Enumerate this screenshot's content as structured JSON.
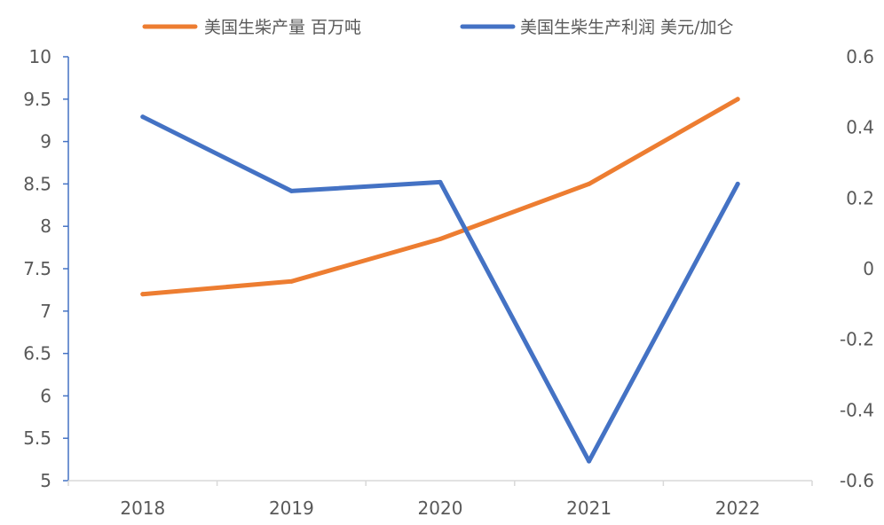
{
  "chart_data": {
    "type": "line",
    "categories": [
      "2018",
      "2019",
      "2020",
      "2021",
      "2022"
    ],
    "series": [
      {
        "name": "美国生柴产量 百万吨",
        "axis": "left",
        "color": "#ED7D31",
        "values": [
          7.2,
          7.35,
          7.85,
          8.5,
          9.5
        ]
      },
      {
        "name": "美国生柴生产利润 美元/加仑",
        "axis": "right",
        "color": "#4472C4",
        "values": [
          0.43,
          0.22,
          0.245,
          -0.545,
          0.24
        ]
      }
    ],
    "left_axis": {
      "min": 5,
      "max": 10,
      "ticks": [
        5,
        5.5,
        6,
        6.5,
        7,
        7.5,
        8,
        8.5,
        9,
        9.5,
        10
      ],
      "tick_labels": [
        "5",
        "5.5",
        "6",
        "6.5",
        "7",
        "7.5",
        "8",
        "8.5",
        "9",
        "9.5",
        "10"
      ]
    },
    "right_axis": {
      "min": -0.6,
      "max": 0.6,
      "ticks": [
        -0.6,
        -0.4,
        -0.2,
        0,
        0.2,
        0.4,
        0.6
      ],
      "tick_labels": [
        "-0.6",
        "-0.4",
        "-0.2",
        "0",
        "0.2",
        "0.4",
        "0.6"
      ]
    },
    "legend_position": "top",
    "grid": false
  }
}
